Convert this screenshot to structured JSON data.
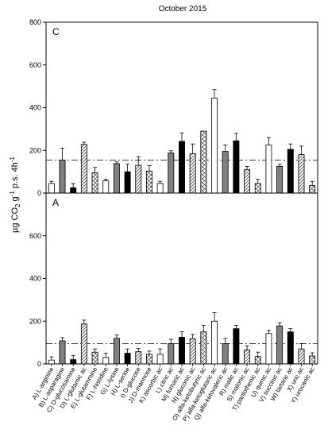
{
  "figure": {
    "title": "October 2015",
    "ylabel": {
      "main": "µg CO",
      "sub": "2",
      "mid": " g",
      "sup1": "-1",
      "mid2": " p.s. 4h",
      "sup2": "-1"
    }
  },
  "patterns": {
    "hatch_stroke": "#444444",
    "white_fill": "#ffffff",
    "gray_fill": "#808080",
    "black_fill": "#000000"
  },
  "chart_data": {
    "type": "bar",
    "categories": [
      "A) L-arginine",
      "B) L-asparagine",
      "C) D-glucosamine",
      "D) L-glutamic ac",
      "E) L-glutammine",
      "F) L-histidine",
      "G) L-lysine",
      "H) L-serine",
      "I) D-glucose",
      "J) D-mannose",
      "K) ascorbic ac",
      "L) citric ac",
      "M) fumaric ac",
      "N) gluconic ac",
      "O) alfa-ketobutyric ac",
      "P) alfa-ketoglutaric ac",
      "Q) alfa-ketovaleric ac",
      "R) malic ac",
      "S) malonic ac",
      "T) pantothenic ac",
      "U) quinic ac",
      "V) succinic ac",
      "W) tartaric ac",
      "X) uric ac",
      "Y) urocanic ac"
    ],
    "fills": [
      "white",
      "gray",
      "black",
      "hatch",
      "cross",
      "white",
      "gray",
      "black",
      "hatch",
      "cross",
      "white",
      "gray",
      "black",
      "hatch",
      "cross",
      "white",
      "gray",
      "black",
      "hatch",
      "cross",
      "white",
      "gray",
      "black",
      "hatch",
      "cross"
    ],
    "panels": [
      {
        "letter": "C",
        "ylim": [
          0,
          800
        ],
        "ticks": [
          0,
          200,
          400,
          600,
          800
        ],
        "reference_line": 155,
        "values": [
          45,
          155,
          25,
          228,
          95,
          57,
          138,
          100,
          130,
          103,
          45,
          188,
          242,
          185,
          290,
          445,
          195,
          245,
          110,
          45,
          225,
          125,
          205,
          180,
          35
        ],
        "errors": [
          10,
          55,
          20,
          10,
          25,
          8,
          8,
          35,
          40,
          25,
          10,
          10,
          40,
          45,
          0,
          40,
          30,
          35,
          15,
          20,
          35,
          10,
          25,
          40,
          20
        ]
      },
      {
        "letter": "A",
        "ylim": [
          0,
          800
        ],
        "ticks": [
          0,
          200,
          400,
          600,
          800
        ],
        "reference_line": 95,
        "values": [
          18,
          108,
          20,
          187,
          55,
          30,
          120,
          50,
          57,
          45,
          45,
          95,
          125,
          118,
          150,
          200,
          95,
          165,
          65,
          35,
          142,
          178,
          150,
          70,
          37
        ],
        "errors": [
          15,
          15,
          20,
          18,
          15,
          20,
          15,
          20,
          15,
          15,
          25,
          20,
          25,
          20,
          30,
          40,
          25,
          15,
          20,
          20,
          15,
          15,
          15,
          25,
          15
        ]
      }
    ]
  }
}
